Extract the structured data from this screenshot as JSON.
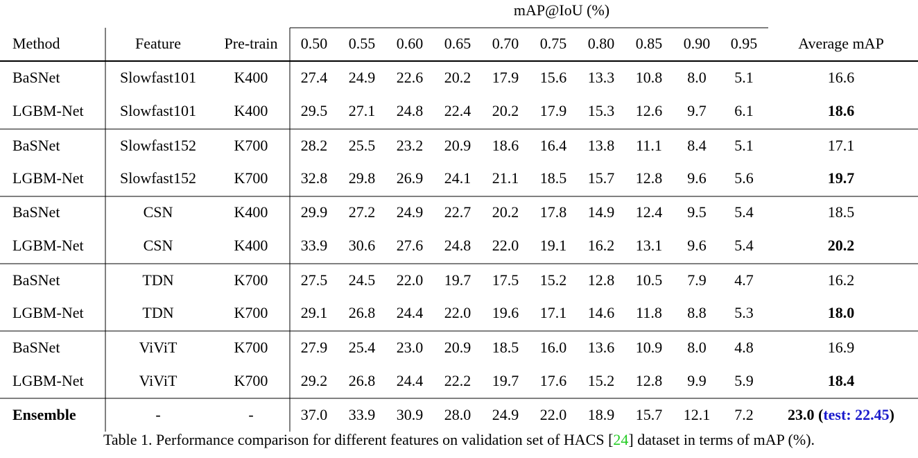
{
  "table": {
    "group_header": "mAP@IoU (%)",
    "columns": [
      "Method",
      "Feature",
      "Pre-train",
      "0.50",
      "0.55",
      "0.60",
      "0.65",
      "0.70",
      "0.75",
      "0.80",
      "0.85",
      "0.90",
      "0.95",
      "Average mAP"
    ],
    "rows": [
      [
        "BaSNet",
        "Slowfast101",
        "K400",
        "27.4",
        "24.9",
        "22.6",
        "20.2",
        "17.9",
        "15.6",
        "13.3",
        "10.8",
        "8.0",
        "5.1",
        "16.6"
      ],
      [
        "LGBM-Net",
        "Slowfast101",
        "K400",
        "29.5",
        "27.1",
        "24.8",
        "22.4",
        "20.2",
        "17.9",
        "15.3",
        "12.6",
        "9.7",
        "6.1",
        "18.6"
      ],
      [
        "BaSNet",
        "Slowfast152",
        "K700",
        "28.2",
        "25.5",
        "23.2",
        "20.9",
        "18.6",
        "16.4",
        "13.8",
        "11.1",
        "8.4",
        "5.1",
        "17.1"
      ],
      [
        "LGBM-Net",
        "Slowfast152",
        "K700",
        "32.8",
        "29.8",
        "26.9",
        "24.1",
        "21.1",
        "18.5",
        "15.7",
        "12.8",
        "9.6",
        "5.6",
        "19.7"
      ],
      [
        "BaSNet",
        "CSN",
        "K400",
        "29.9",
        "27.2",
        "24.9",
        "22.7",
        "20.2",
        "17.8",
        "14.9",
        "12.4",
        "9.5",
        "5.4",
        "18.5"
      ],
      [
        "LGBM-Net",
        "CSN",
        "K400",
        "33.9",
        "30.6",
        "27.6",
        "24.8",
        "22.0",
        "19.1",
        "16.2",
        "13.1",
        "9.6",
        "5.4",
        "20.2"
      ],
      [
        "BaSNet",
        "TDN",
        "K700",
        "27.5",
        "24.5",
        "22.0",
        "19.7",
        "17.5",
        "15.2",
        "12.8",
        "10.5",
        "7.9",
        "4.7",
        "16.2"
      ],
      [
        "LGBM-Net",
        "TDN",
        "K700",
        "29.1",
        "26.8",
        "24.4",
        "22.0",
        "19.6",
        "17.1",
        "14.6",
        "11.8",
        "8.8",
        "5.3",
        "18.0"
      ],
      [
        "BaSNet",
        "ViViT",
        "K700",
        "27.9",
        "25.4",
        "23.0",
        "20.9",
        "18.5",
        "16.0",
        "13.6",
        "10.9",
        "8.0",
        "4.8",
        "16.9"
      ],
      [
        "LGBM-Net",
        "ViViT",
        "K700",
        "29.2",
        "26.8",
        "24.4",
        "22.2",
        "19.7",
        "17.6",
        "15.2",
        "12.8",
        "9.9",
        "5.9",
        "18.4"
      ]
    ],
    "ensemble": {
      "cells": [
        "Ensemble",
        "-",
        "-",
        "37.0",
        "33.9",
        "30.9",
        "28.0",
        "24.9",
        "22.0",
        "18.9",
        "15.7",
        "12.1",
        "7.2"
      ],
      "average": "23.0",
      "test_open": "(",
      "test": "test: 22.45",
      "test_close": ")"
    }
  },
  "caption": {
    "before": "Table 1. Performance comparison for different features on validation set of HACS [",
    "ref": "24",
    "after": "] dataset in terms of mAP (%)."
  }
}
